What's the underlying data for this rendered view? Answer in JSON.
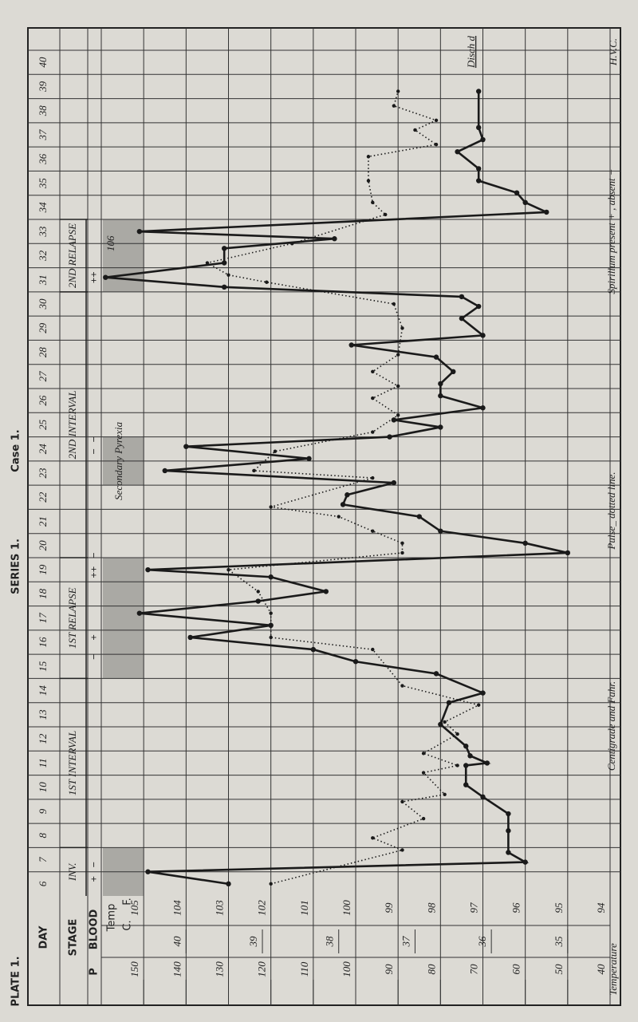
{
  "plate": "PLATE 1.",
  "series_label": "SERIES 1.",
  "chart_data": {
    "type": "line",
    "title": "Case 1.",
    "x_label": "DAY",
    "stage_label": "STAGE",
    "blood_label": "BLOOD",
    "pulse_label": "P",
    "temp_label": "Temp",
    "c_label": "C.",
    "f_label": "F.",
    "xlim": [
      5.5,
      40.5
    ],
    "xticks": [
      6,
      7,
      8,
      9,
      10,
      11,
      12,
      13,
      14,
      15,
      16,
      17,
      18,
      19,
      20,
      21,
      22,
      23,
      24,
      25,
      26,
      27,
      28,
      29,
      30,
      31,
      32,
      33,
      34,
      35,
      36,
      37,
      38,
      39,
      40
    ],
    "ylim": [
      94,
      106
    ],
    "yticks": [
      94,
      95,
      96,
      97,
      98,
      99,
      100,
      101,
      102,
      103,
      104,
      105
    ],
    "y2lim": [
      40,
      160
    ],
    "y2ticks": [
      40,
      50,
      60,
      70,
      80,
      90,
      100,
      110,
      120,
      130,
      140,
      150
    ],
    "cticks": [
      35,
      36,
      37,
      38,
      39,
      40
    ],
    "grid": true,
    "series": [
      {
        "name": "Temperature",
        "color": "#1a1a1a",
        "style": "solid",
        "x": [
          6.0,
          6.5,
          6.9,
          7.3,
          8.2,
          8.9,
          9.6,
          10.1,
          10.9,
          11.0,
          11.3,
          11.7,
          12.6,
          13.5,
          13.9,
          14.7,
          15.2,
          15.7,
          16.2,
          16.7,
          17.2,
          17.7,
          18.1,
          18.7,
          19.0,
          19.7,
          20.1,
          20.6,
          21.2,
          21.7,
          22.1,
          22.6,
          23.1,
          23.6,
          24.1,
          24.5,
          24.9,
          25.2,
          25.7,
          26.2,
          26.7,
          27.2,
          27.8,
          28.3,
          28.7,
          29.4,
          29.9,
          30.3,
          30.7,
          31.1,
          31.7,
          32.3,
          32.7,
          33.0,
          33.8,
          34.2,
          34.6,
          35.1,
          35.6,
          36.3,
          36.8,
          37.3,
          38.8
        ],
        "values": [
          103.0,
          104.9,
          96.0,
          96.4,
          96.4,
          96.4,
          97.0,
          97.4,
          97.4,
          96.9,
          97.3,
          97.4,
          98.0,
          97.8,
          97.0,
          98.1,
          100.0,
          101.0,
          103.9,
          102.0,
          105.1,
          102.3,
          100.7,
          102.0,
          104.9,
          95.0,
          96.0,
          98.0,
          98.5,
          100.3,
          100.2,
          99.1,
          104.5,
          101.1,
          104.0,
          99.2,
          98.0,
          99.1,
          97.0,
          98.0,
          98.0,
          97.7,
          98.1,
          100.1,
          97.0,
          97.5,
          97.1,
          97.5,
          103.1,
          105.9,
          103.1,
          103.1,
          100.5,
          105.1,
          95.5,
          96.0,
          96.2,
          97.1,
          97.1,
          97.6,
          97.0,
          97.1,
          97.1
        ]
      },
      {
        "name": "Pulse",
        "color": "#1a1a1a",
        "style": "dotted",
        "axis": "y2",
        "x": [
          6.0,
          7.4,
          7.9,
          8.7,
          9.4,
          9.7,
          10.6,
          10.9,
          11.4,
          12.2,
          12.7,
          13.4,
          14.2,
          15.7,
          16.2,
          17.2,
          18.1,
          19.0,
          19.7,
          20.1,
          20.6,
          21.2,
          21.6,
          22.8,
          23.1,
          23.9,
          24.7,
          25.4,
          26.1,
          26.6,
          27.2,
          27.9,
          29.0,
          30.0,
          30.9,
          31.2,
          31.7,
          32.5,
          33.7,
          34.2,
          35.1,
          36.1,
          36.6,
          37.2,
          37.6,
          38.2,
          38.8
        ],
        "values": [
          120,
          89,
          96,
          84,
          89,
          79,
          84,
          76,
          84,
          76,
          79,
          71,
          89,
          96,
          120,
          120,
          123,
          130,
          89,
          89,
          96,
          104,
          120,
          96,
          124,
          119,
          96,
          90,
          96,
          90,
          96,
          90,
          89,
          91,
          121,
          130,
          135,
          115,
          93,
          96,
          97,
          97,
          81,
          86,
          81,
          91,
          90
        ]
      }
    ],
    "stages": [
      {
        "label": "INV.",
        "start": 5.5,
        "end": 7.5
      },
      {
        "label": "1ST INTERVAL",
        "start": 7.5,
        "end": 14.5
      },
      {
        "label": "1ST RELAPSE",
        "start": 14.5,
        "end": 19.5
      },
      {
        "label": "2ND INTERVAL",
        "start": 19.5,
        "end": 30.5
      },
      {
        "label": "2ND RELAPSE",
        "start": 30.5,
        "end": 33.5
      }
    ],
    "shading": [
      [
        5.5,
        7.5
      ],
      [
        14.5,
        19.5
      ],
      [
        22.5,
        24.5
      ],
      [
        30.5,
        33.5
      ]
    ],
    "blood": [
      {
        "x": 6.2,
        "label": "+"
      },
      {
        "x": 6.8,
        "label": "−"
      },
      {
        "x": 15.4,
        "label": "−"
      },
      {
        "x": 16.2,
        "label": "+"
      },
      {
        "x": 18.9,
        "label": "++"
      },
      {
        "x": 19.6,
        "label": "−"
      },
      {
        "x": 23.9,
        "label": "−"
      },
      {
        "x": 24.4,
        "label": "−"
      },
      {
        "x": 31.1,
        "label": "++"
      }
    ],
    "annotations": {
      "relapse_temp": "106",
      "secondary": "Secondary Pyrexia",
      "discharged": "Disch d",
      "initials": "H.V.C."
    },
    "footer": {
      "spirillum": "Spirillum present + , absent −",
      "pulse_note": "Pulse_ dotted line.",
      "scales": "Centigrade and Fahr.",
      "temperature": "Temperature"
    }
  }
}
